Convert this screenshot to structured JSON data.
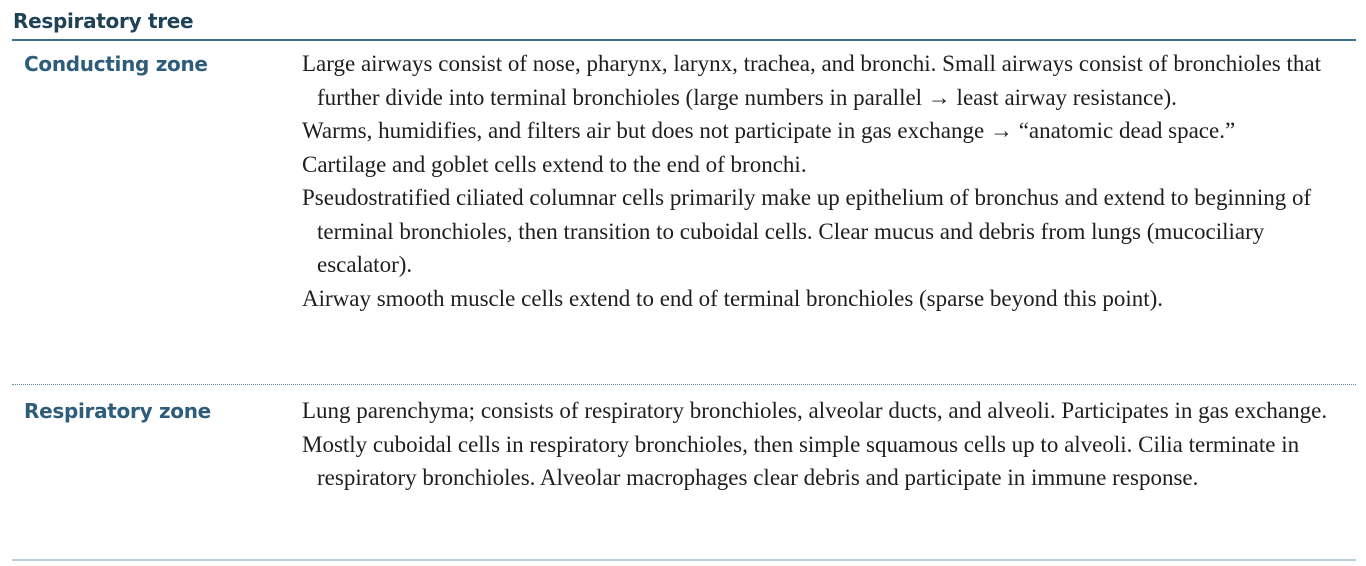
{
  "section": {
    "title": "Respiratory tree"
  },
  "rows": [
    {
      "label": "Conducting zone",
      "paragraphs": [
        "Large airways consist of nose, pharynx, larynx, trachea, and bronchi. Small airways consist of bronchioles that further divide into terminal bronchioles (large numbers in parallel → least airway resistance).",
        "Warms, humidifies, and filters air but does not participate in gas exchange → “anatomic dead space.”",
        "Cartilage and goblet cells extend to the end of bronchi.",
        "Pseudostratified ciliated columnar cells primarily make up epithelium of bronchus and extend to beginning of terminal bronchioles, then transition to cuboidal cells. Clear mucus and debris from lungs (mucociliary escalator).",
        "Airway smooth muscle cells extend to end of terminal bronchioles (sparse beyond this point)."
      ]
    },
    {
      "label": "Respiratory zone",
      "paragraphs": [
        "Lung parenchyma; consists of respiratory bronchioles, alveolar ducts, and alveoli. Participates in gas exchange.",
        "Mostly cuboidal cells in respiratory bronchioles, then simple squamous cells up to alveoli. Cilia terminate in respiratory bronchioles. Alveolar macrophages clear debris and participate in immune response."
      ]
    }
  ],
  "colors": {
    "title": "#1f4257",
    "label": "#2d5d7b",
    "rule": "#3a7089",
    "text": "#1e1e1e"
  }
}
